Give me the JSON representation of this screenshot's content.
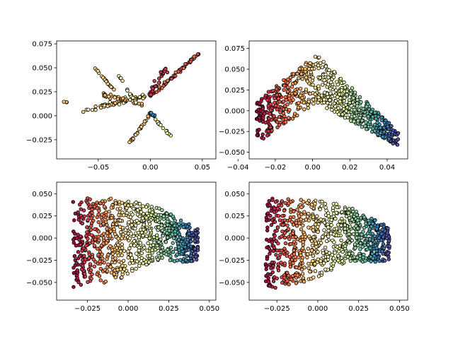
{
  "figure": {
    "background": "#ffffff",
    "colormap": "Spectral",
    "marker_edge_color": "#000000"
  },
  "chart_data": [
    {
      "type": "scatter",
      "position": "top-left",
      "title": "",
      "xlabel": "",
      "ylabel": "",
      "xlim": [
        -0.09,
        0.063
      ],
      "ylim": [
        -0.045,
        0.078
      ],
      "xticks": [
        -0.05,
        0.0,
        0.05
      ],
      "xtick_labels": [
        "−0.05",
        "0.00",
        "0.05"
      ],
      "yticks": [
        -0.025,
        0.0,
        0.025,
        0.05,
        0.075
      ],
      "ytick_labels": [
        "−0.025",
        "0.000",
        "0.025",
        "0.050",
        "0.075"
      ],
      "grid": false,
      "legend": "none",
      "point_groups": [
        {
          "shape": "segment",
          "from": [
            0.0,
            0.02
          ],
          "to": [
            0.048,
            0.066
          ],
          "count": 60,
          "spread": 0.002,
          "color_range": [
            0.12,
            0.25
          ]
        },
        {
          "shape": "segment",
          "from": [
            -0.065,
            0.005
          ],
          "to": [
            0.0,
            0.022
          ],
          "count": 55,
          "spread": 0.003,
          "color_range": [
            0.3,
            0.55
          ]
        },
        {
          "shape": "segment",
          "from": [
            -0.045,
            0.022
          ],
          "to": [
            -0.005,
            0.012
          ],
          "count": 30,
          "spread": 0.003,
          "color_range": [
            0.28,
            0.42
          ]
        },
        {
          "shape": "segment",
          "from": [
            -0.055,
            0.052
          ],
          "to": [
            -0.035,
            0.027
          ],
          "count": 18,
          "spread": 0.001,
          "color_range": [
            0.35,
            0.42
          ]
        },
        {
          "shape": "segment",
          "from": [
            -0.032,
            0.045
          ],
          "to": [
            -0.012,
            0.01
          ],
          "count": 14,
          "spread": 0.001,
          "color_range": [
            0.45,
            0.5
          ]
        },
        {
          "shape": "segment",
          "from": [
            -0.022,
            -0.032
          ],
          "to": [
            0.0,
            0.002
          ],
          "count": 22,
          "spread": 0.001,
          "color_range": [
            0.3,
            0.4
          ]
        },
        {
          "shape": "segment",
          "from": [
            0.0,
            0.002
          ],
          "to": [
            0.02,
            -0.022
          ],
          "count": 15,
          "spread": 0.001,
          "color_range": [
            0.55,
            0.6
          ]
        },
        {
          "shape": "segment",
          "from": [
            0.0,
            0.022
          ],
          "to": [
            0.015,
            0.05
          ],
          "count": 30,
          "spread": 0.003,
          "color_range": [
            0.05,
            0.12
          ]
        },
        {
          "shape": "segment",
          "from": [
            -0.005,
            0.005
          ],
          "to": [
            0.005,
            0.0
          ],
          "count": 8,
          "spread": 0.002,
          "color_range": [
            0.85,
            0.95
          ]
        },
        {
          "shape": "segment",
          "from": [
            -0.084,
            0.015
          ],
          "to": [
            -0.08,
            0.014
          ],
          "count": 3,
          "spread": 0.0005,
          "color_range": [
            0.32,
            0.35
          ]
        }
      ]
    },
    {
      "type": "scatter",
      "position": "top-right",
      "title": "",
      "xlabel": "",
      "ylabel": "",
      "xlim": [
        -0.034,
        0.051
      ],
      "ylim": [
        -0.058,
        0.084
      ],
      "xticks": [
        -0.04,
        -0.02,
        0.0,
        0.02,
        0.04
      ],
      "xtick_labels": [
        "−0.04",
        "−0.02",
        "0.00",
        "0.02",
        "0.04"
      ],
      "yticks": [
        -0.05,
        -0.025,
        0.0,
        0.025,
        0.05,
        0.075
      ],
      "ytick_labels": [
        "−0.050",
        "−0.025",
        "0.000",
        "0.025",
        "0.050",
        "0.075"
      ],
      "grid": false,
      "legend": "none",
      "point_groups": [
        {
          "shape": "chevron",
          "x_range": [
            -0.03,
            0.046
          ],
          "peak_x": 0.002,
          "top": [
            0.012,
            0.068,
            -0.025
          ],
          "bottom": [
            -0.04,
            0.01,
            -0.043
          ],
          "count": 700
        }
      ]
    },
    {
      "type": "scatter",
      "position": "bottom-left",
      "title": "",
      "xlabel": "",
      "ylabel": "",
      "xlim": [
        -0.044,
        0.054
      ],
      "ylim": [
        -0.07,
        0.063
      ],
      "xticks": [
        -0.025,
        0.0,
        0.025,
        0.05
      ],
      "xtick_labels": [
        "−0.025",
        "0.000",
        "0.025",
        "0.050"
      ],
      "yticks": [
        -0.05,
        -0.025,
        0.0,
        0.025,
        0.05
      ],
      "ytick_labels": [
        "−0.050",
        "−0.025",
        "0.000",
        "0.025",
        "0.050"
      ],
      "grid": false,
      "legend": "none",
      "point_groups": [
        {
          "shape": "band",
          "x_range": [
            -0.034,
            0.043
          ],
          "top": [
            0.045,
            0.045,
            0.036,
            0.01
          ],
          "bottom": [
            -0.057,
            -0.05,
            -0.025,
            -0.028
          ],
          "count": 850
        }
      ]
    },
    {
      "type": "scatter",
      "position": "bottom-right",
      "title": "",
      "xlabel": "",
      "ylabel": "",
      "xlim": [
        -0.042,
        0.055
      ],
      "ylim": [
        -0.07,
        0.063
      ],
      "xticks": [
        -0.025,
        0.0,
        0.025,
        0.05
      ],
      "xtick_labels": [
        "−0.025",
        "0.000",
        "0.025",
        "0.050"
      ],
      "yticks": [
        -0.05,
        -0.025,
        0.0,
        0.025,
        0.05
      ],
      "ytick_labels": [
        "−0.050",
        "−0.025",
        "0.000",
        "0.025",
        "0.050"
      ],
      "grid": false,
      "legend": "none",
      "point_groups": [
        {
          "shape": "band",
          "x_range": [
            -0.032,
            0.044
          ],
          "top": [
            0.046,
            0.045,
            0.036,
            0.012
          ],
          "bottom": [
            -0.058,
            -0.05,
            -0.026,
            -0.028
          ],
          "count": 850
        }
      ]
    }
  ]
}
